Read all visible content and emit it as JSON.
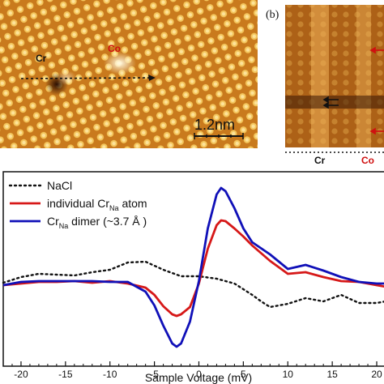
{
  "panel_a": {
    "labels": {
      "cr": "Cr",
      "co": "Co"
    },
    "scale_bar": "1.2nm",
    "colors": {
      "cr": "#111111",
      "co": "#d01010",
      "arrow": "#111111"
    }
  },
  "panel_b": {
    "panel_label": "(b)",
    "labels": {
      "cr": "Cr",
      "co": "Co"
    },
    "colors": {
      "cr": "#111111",
      "co": "#d01010"
    }
  },
  "chart_data": {
    "type": "line",
    "xlabel": "Sample Voltage (mV)",
    "ylabel": "",
    "xlim": [
      -22,
      21
    ],
    "xticks": [
      -20,
      -15,
      -10,
      -5,
      0,
      5,
      10,
      15,
      20
    ],
    "xtick_labels": [
      "-20",
      "-15",
      "-10",
      "-5",
      "0",
      "5",
      "10",
      "15",
      "20"
    ],
    "legend_position": "top-left",
    "legend": [
      {
        "text": "NaCl",
        "style": "dotted",
        "color": "#111111"
      },
      {
        "text": "individual Cr",
        "sub": "Na",
        "suffix": " atom",
        "style": "solid",
        "color": "#d61818"
      },
      {
        "text": "Cr",
        "sub": "Na",
        "suffix": " dimer (~3.7 Å )",
        "style": "solid",
        "color": "#1010b8"
      }
    ],
    "series": [
      {
        "style": "dotted",
        "color": "#111111",
        "x": [
          -22,
          -20,
          -18,
          -16,
          -14,
          -12,
          -10,
          -8,
          -6,
          -4,
          -2,
          0,
          2,
          4,
          6,
          7,
          8,
          10,
          12,
          14,
          16,
          18,
          20,
          21
        ],
        "y": [
          0.03,
          0.1,
          0.14,
          0.13,
          0.12,
          0.16,
          0.19,
          0.28,
          0.29,
          0.19,
          0.11,
          0.11,
          0.08,
          0.02,
          -0.12,
          -0.2,
          -0.27,
          -0.23,
          -0.16,
          -0.2,
          -0.12,
          -0.22,
          -0.22,
          -0.2
        ]
      },
      {
        "style": "solid",
        "color": "#d61818",
        "x": [
          -22,
          -20,
          -18,
          -16,
          -14,
          -12,
          -10,
          -8,
          -6,
          -5,
          -4,
          -3,
          -2.5,
          -2,
          -1,
          0,
          1,
          2,
          2.5,
          3,
          4,
          5,
          6,
          8,
          10,
          12,
          14,
          16,
          18,
          20,
          21
        ],
        "y": [
          0.0,
          0.02,
          0.04,
          0.04,
          0.05,
          0.03,
          0.05,
          0.02,
          -0.03,
          -0.12,
          -0.26,
          -0.36,
          -0.38,
          -0.36,
          -0.27,
          0.02,
          0.45,
          0.74,
          0.8,
          0.79,
          0.7,
          0.6,
          0.49,
          0.3,
          0.14,
          0.16,
          0.1,
          0.05,
          0.04,
          0.0,
          -0.02
        ]
      },
      {
        "style": "solid",
        "color": "#1010b8",
        "x": [
          -22,
          -20,
          -18,
          -16,
          -14,
          -12,
          -10,
          -8,
          -6,
          -5,
          -4,
          -3,
          -2.5,
          -2,
          -1,
          0,
          1,
          2,
          2.5,
          3,
          4,
          5,
          6,
          8,
          10,
          12,
          14,
          16,
          18,
          20,
          21
        ],
        "y": [
          0.0,
          0.04,
          0.05,
          0.05,
          0.05,
          0.05,
          0.04,
          0.04,
          -0.08,
          -0.25,
          -0.5,
          -0.72,
          -0.76,
          -0.72,
          -0.45,
          0.05,
          0.7,
          1.12,
          1.2,
          1.16,
          0.95,
          0.7,
          0.53,
          0.38,
          0.2,
          0.25,
          0.18,
          0.1,
          0.04,
          0.02,
          0.02
        ]
      }
    ]
  }
}
